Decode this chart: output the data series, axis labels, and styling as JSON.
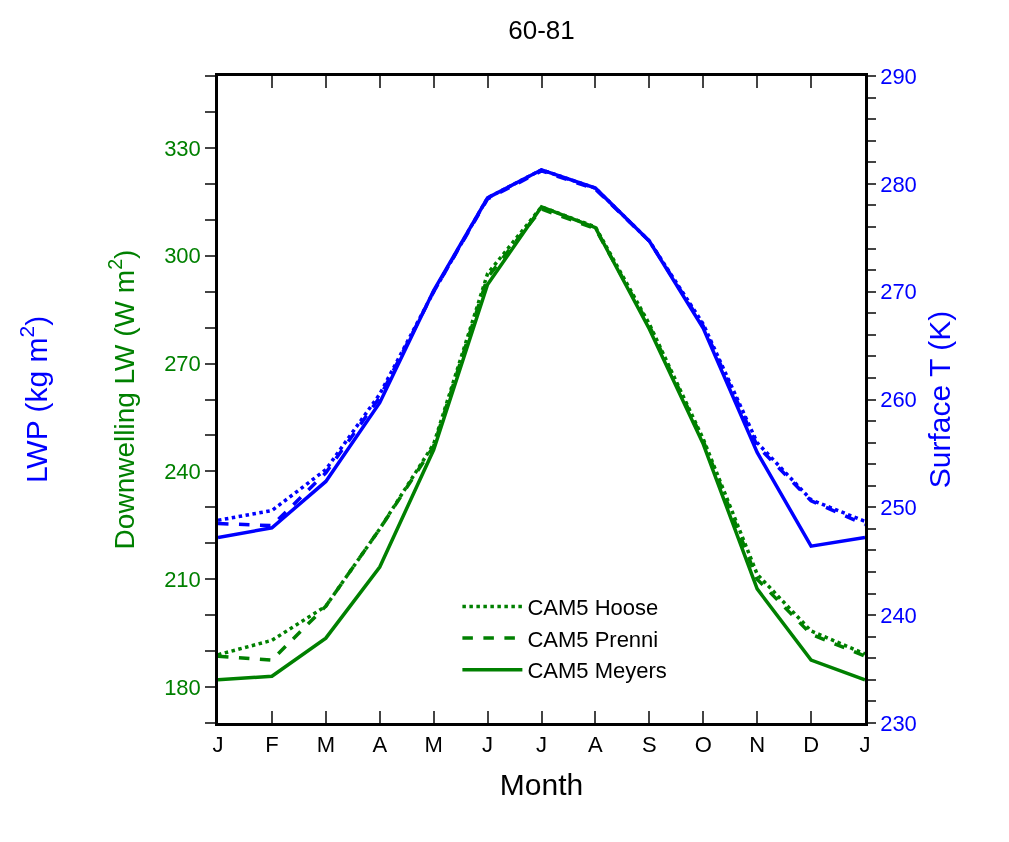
{
  "chart_data": {
    "type": "line",
    "title": "60-81",
    "xlabel": "Month",
    "ylabel": "Downwelling LW (W m$^{2}$)",
    "y2label": "Surface T (K)",
    "annotations": [
      "LWP (kg m$^{2}$)"
    ],
    "categories": [
      "J",
      "F",
      "M",
      "A",
      "M",
      "J",
      "J",
      "A",
      "S",
      "O",
      "N",
      "D",
      "J"
    ],
    "series": [
      {
        "name": "CAM5 Hoose",
        "color": "#008000",
        "line_style": "dotted",
        "values": [
          189,
          193,
          202.5,
          224,
          247.6,
          295,
          313.6,
          308,
          281,
          249,
          211.4,
          195.6,
          189.2
        ]
      },
      {
        "name": "CAM5 Prenni",
        "color": "#008000",
        "line_style": "dashed",
        "values": [
          188.6,
          187.5,
          202.5,
          224,
          247,
          294,
          313,
          307.5,
          280.5,
          248.5,
          210,
          194.7,
          188.6
        ]
      },
      {
        "name": "CAM5 Meyers",
        "color": "#008000",
        "line_style": "solid",
        "values": [
          182,
          183,
          193.6,
          213.4,
          246,
          292,
          313.6,
          307.8,
          279.6,
          247.6,
          207.3,
          187.5,
          182
        ]
      },
      {
        "color": "#0000ff",
        "line_style": "dotted",
        "axis": "y2",
        "values": [
          248.8,
          249.7,
          253.5,
          260.5,
          270,
          278.7,
          281.3,
          279.6,
          274.7,
          267,
          256,
          250.7,
          248.7
        ]
      },
      {
        "color": "#0000ff",
        "line_style": "dashed",
        "axis": "y2",
        "values": [
          248.5,
          248.3,
          253.2,
          260.2,
          270,
          278.6,
          281.2,
          279.5,
          274.7,
          266.8,
          255.7,
          250.6,
          248.4
        ]
      },
      {
        "color": "#0000ff",
        "line_style": "solid",
        "axis": "y2",
        "values": [
          247.2,
          248.1,
          252.4,
          259.7,
          270.1,
          278.7,
          281.3,
          279.6,
          274.7,
          266.6,
          255.1,
          246.4,
          247.2
        ]
      }
    ],
    "ylim": [
      170,
      350
    ],
    "yticks": [
      {
        "value": 170,
        "label": null
      },
      180,
      {
        "value": 190,
        "label": null
      },
      {
        "value": 200,
        "label": null
      },
      210,
      {
        "value": 220,
        "label": null
      },
      {
        "value": 230,
        "label": null
      },
      240,
      {
        "value": 250,
        "label": null
      },
      {
        "value": 260,
        "label": null
      },
      270,
      {
        "value": 280,
        "label": null
      },
      {
        "value": 290,
        "label": null
      },
      300,
      {
        "value": 310,
        "label": null
      },
      {
        "value": 320,
        "label": null
      },
      330,
      {
        "value": 340,
        "label": null
      },
      {
        "value": 350,
        "label": null
      }
    ],
    "y2lim": [
      230,
      290
    ],
    "y2ticks": [
      230,
      {
        "value": 232,
        "label": null
      },
      {
        "value": 234,
        "label": null
      },
      {
        "value": 236,
        "label": null
      },
      {
        "value": 238,
        "label": null
      },
      240,
      {
        "value": 242,
        "label": null
      },
      {
        "value": 244,
        "label": null
      },
      {
        "value": 246,
        "label": null
      },
      {
        "value": 248,
        "label": null
      },
      250,
      {
        "value": 252,
        "label": null
      },
      {
        "value": 254,
        "label": null
      },
      {
        "value": 256,
        "label": null
      },
      {
        "value": 258,
        "label": null
      },
      260,
      {
        "value": 262,
        "label": null
      },
      {
        "value": 264,
        "label": null
      },
      {
        "value": 266,
        "label": null
      },
      {
        "value": 268,
        "label": null
      },
      270,
      {
        "value": 272,
        "label": null
      },
      {
        "value": 274,
        "label": null
      },
      {
        "value": 276,
        "label": null
      },
      {
        "value": 278,
        "label": null
      },
      280,
      {
        "value": 282,
        "label": null
      },
      {
        "value": 284,
        "label": null
      },
      {
        "value": 286,
        "label": null
      },
      {
        "value": 288,
        "label": null
      },
      290
    ],
    "legend": "bottom",
    "marker": "none"
  }
}
